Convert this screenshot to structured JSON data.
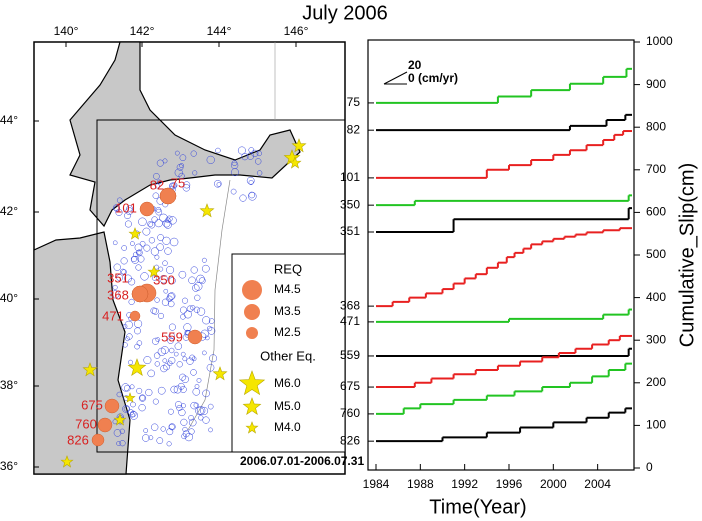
{
  "title": "July 2006",
  "map": {
    "lon_ticks": [
      "140°",
      "142°",
      "144°",
      "146°"
    ],
    "lat_ticks": [
      "44°",
      "42°",
      "40°",
      "38°",
      "36°"
    ],
    "quakes": [
      {
        "label": "82"
      },
      {
        "label": "75"
      },
      {
        "label": "101"
      },
      {
        "label": "351"
      },
      {
        "label": "350"
      },
      {
        "label": "368"
      },
      {
        "label": "471"
      },
      {
        "label": "559"
      },
      {
        "label": "675"
      },
      {
        "label": "760"
      },
      {
        "label": "826"
      }
    ],
    "legend": {
      "title": "REQ",
      "req": [
        "M4.5",
        "M3.5",
        "M2.5"
      ],
      "other_title": "Other Eq.",
      "other": [
        "M6.0",
        "M5.0",
        "M4.0"
      ]
    },
    "period": "2006.07.01-2006.07.31"
  },
  "chart_data": {
    "type": "step",
    "x_label": "Time(Year)",
    "y2_label": "Cumulative_Slip(cm)",
    "scale_label_top": "20",
    "scale_label_bottom": "0 (cm/yr)",
    "xlim": [
      1984,
      2007.1
    ],
    "xticks": [
      1984,
      1988,
      1992,
      1996,
      2000,
      2004
    ],
    "y2lim": [
      0,
      1000
    ],
    "y2ticks": [
      0,
      100,
      200,
      300,
      400,
      500,
      600,
      700,
      800,
      900,
      1000
    ],
    "series": [
      {
        "name": "75",
        "color": "#22c422",
        "axis": "y2",
        "x": [
          1984,
          1995,
          1998,
          2001.5,
          2004.5,
          2006.6
        ],
        "values": [
          857,
          872,
          887,
          902,
          918,
          937
        ]
      },
      {
        "name": "82",
        "color": "#000000",
        "axis": "y2",
        "x": [
          1984,
          2001.5,
          2004.8,
          2006.5
        ],
        "values": [
          793,
          803,
          817,
          829
        ]
      },
      {
        "name": "101",
        "color": "#e82020",
        "axis": "y2",
        "x": [
          1984,
          1994,
          1996,
          1998,
          2000,
          2001.5,
          2003,
          2004.5,
          2005.5,
          2006.3
        ],
        "values": [
          681,
          700,
          711,
          723,
          735,
          746,
          758,
          770,
          782,
          791
        ]
      },
      {
        "name": "350",
        "color": "#22c422",
        "axis": "y2",
        "x": [
          1984,
          1987.5,
          2006.8
        ],
        "values": [
          617,
          627,
          640
        ]
      },
      {
        "name": "351",
        "color": "#000000",
        "axis": "y2",
        "x": [
          1984,
          1991,
          2006.8
        ],
        "values": [
          554,
          584,
          610
        ]
      },
      {
        "name": "368",
        "color": "#e82020",
        "axis": "y2",
        "x": [
          1984,
          1985.5,
          1987,
          1988.5,
          1990,
          1991,
          1992,
          1993,
          1994,
          1995,
          1995.8,
          1996.5,
          1997.3,
          1998,
          1999,
          2000,
          2001,
          2002,
          2003,
          2004.5,
          2006
        ],
        "values": [
          380,
          390,
          400,
          410,
          420,
          433,
          445,
          455,
          470,
          482,
          495,
          505,
          515,
          525,
          532,
          538,
          543,
          548,
          553,
          558,
          563
        ]
      },
      {
        "name": "471",
        "color": "#22c422",
        "axis": "y2",
        "x": [
          1984,
          1996,
          2004.5,
          2006.8
        ],
        "values": [
          343,
          350,
          360,
          372
        ]
      },
      {
        "name": "559",
        "color": "#000000",
        "axis": "y2",
        "x": [
          1984,
          2006.8
        ],
        "values": [
          263,
          280
        ]
      },
      {
        "name": "675",
        "color": "#e82020",
        "axis": "y2",
        "x": [
          1984,
          1987.5,
          1989,
          1991,
          1993,
          1995,
          1997,
          1999,
          2000.5,
          2002,
          2003.5,
          2005,
          2006
        ],
        "values": [
          190,
          200,
          210,
          220,
          230,
          240,
          250,
          260,
          270,
          280,
          290,
          300,
          310
        ]
      },
      {
        "name": "760",
        "color": "#22c422",
        "axis": "y2",
        "x": [
          1984,
          1986.5,
          1988,
          1991,
          1994,
          1996.5,
          1999,
          2001.5,
          2003.5,
          2005,
          2006.5
        ],
        "values": [
          127,
          140,
          150,
          160,
          170,
          180,
          190,
          200,
          215,
          230,
          245
        ]
      },
      {
        "name": "826",
        "color": "#000000",
        "axis": "y2",
        "x": [
          1984,
          1990,
          1994,
          1997,
          2000,
          2003,
          2005,
          2006.5
        ],
        "values": [
          63,
          72,
          83,
          95,
          107,
          118,
          130,
          140
        ]
      }
    ]
  }
}
